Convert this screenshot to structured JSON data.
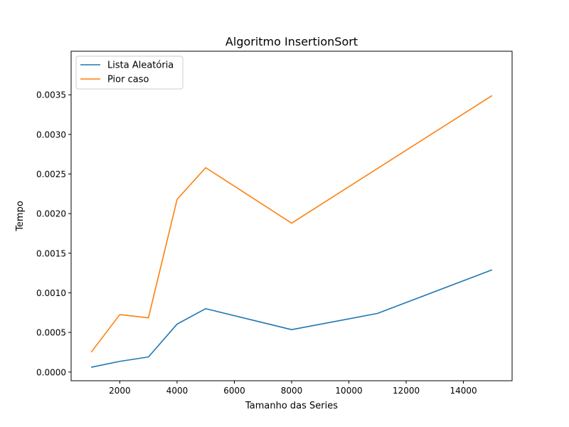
{
  "chart_data": {
    "type": "line",
    "title": "Algoritmo InsertionSort",
    "xlabel": "Tamanho das Series",
    "ylabel": "Tempo",
    "xlim": [
      300,
      15700
    ],
    "ylim": [
      -0.00011,
      0.00405
    ],
    "xticks": [
      2000,
      4000,
      6000,
      8000,
      10000,
      12000,
      14000
    ],
    "xtick_labels": [
      "2000",
      "4000",
      "6000",
      "8000",
      "10000",
      "12000",
      "14000"
    ],
    "yticks": [
      0.0,
      0.0005,
      0.001,
      0.0015,
      0.002,
      0.0025,
      0.003,
      0.0035
    ],
    "ytick_labels": [
      "0.0000",
      "0.0005",
      "0.0010",
      "0.0015",
      "0.0020",
      "0.0025",
      "0.0030",
      "0.0035"
    ],
    "grid": false,
    "legend_position": "top-left",
    "series": [
      {
        "name": "Lista Aleatória",
        "color": "#1f77b4",
        "x": [
          1000,
          2000,
          3000,
          4000,
          5000,
          8000,
          11000,
          15000
        ],
        "y": [
          6e-05,
          0.000135,
          0.00019,
          0.000605,
          0.0008,
          0.000535,
          0.00074,
          0.00129
        ]
      },
      {
        "name": "Pior caso",
        "color": "#ff7f0e",
        "x": [
          1000,
          2000,
          3000,
          4000,
          5000,
          8000,
          15000
        ],
        "y": [
          0.00025,
          0.000725,
          0.000685,
          0.00218,
          0.00258,
          0.00188,
          0.00349
        ]
      }
    ]
  }
}
